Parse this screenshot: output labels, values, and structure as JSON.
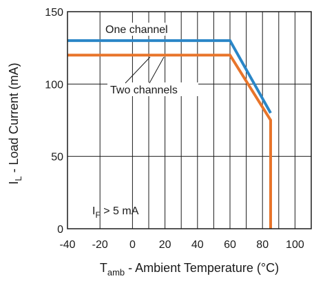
{
  "chart_data": {
    "type": "line",
    "x_range": [
      -40,
      110
    ],
    "ylim": [
      0,
      150
    ],
    "x_ticks": [
      -40,
      -20,
      0,
      20,
      40,
      60,
      80,
      100
    ],
    "y_ticks": [
      0,
      50,
      100,
      150
    ],
    "grid": true,
    "xlabel": {
      "main": "T",
      "sub": "amb",
      "rest": " - Ambient Temperature (°C)"
    },
    "ylabel": {
      "main": "I",
      "sub": "L",
      "rest": " - Load Current (mA)"
    },
    "condition": {
      "main": "I",
      "sub": "F",
      "rest": " > 5 mA"
    },
    "series": [
      {
        "name": "One channel",
        "color": "#2a86c7",
        "points": [
          [
            -40,
            130
          ],
          [
            60,
            130
          ],
          [
            85,
            80
          ]
        ]
      },
      {
        "name": "Two channels",
        "color": "#e8752b",
        "points": [
          [
            -40,
            120
          ],
          [
            60,
            120
          ],
          [
            85,
            75
          ],
          [
            85,
            0
          ]
        ]
      }
    ]
  }
}
